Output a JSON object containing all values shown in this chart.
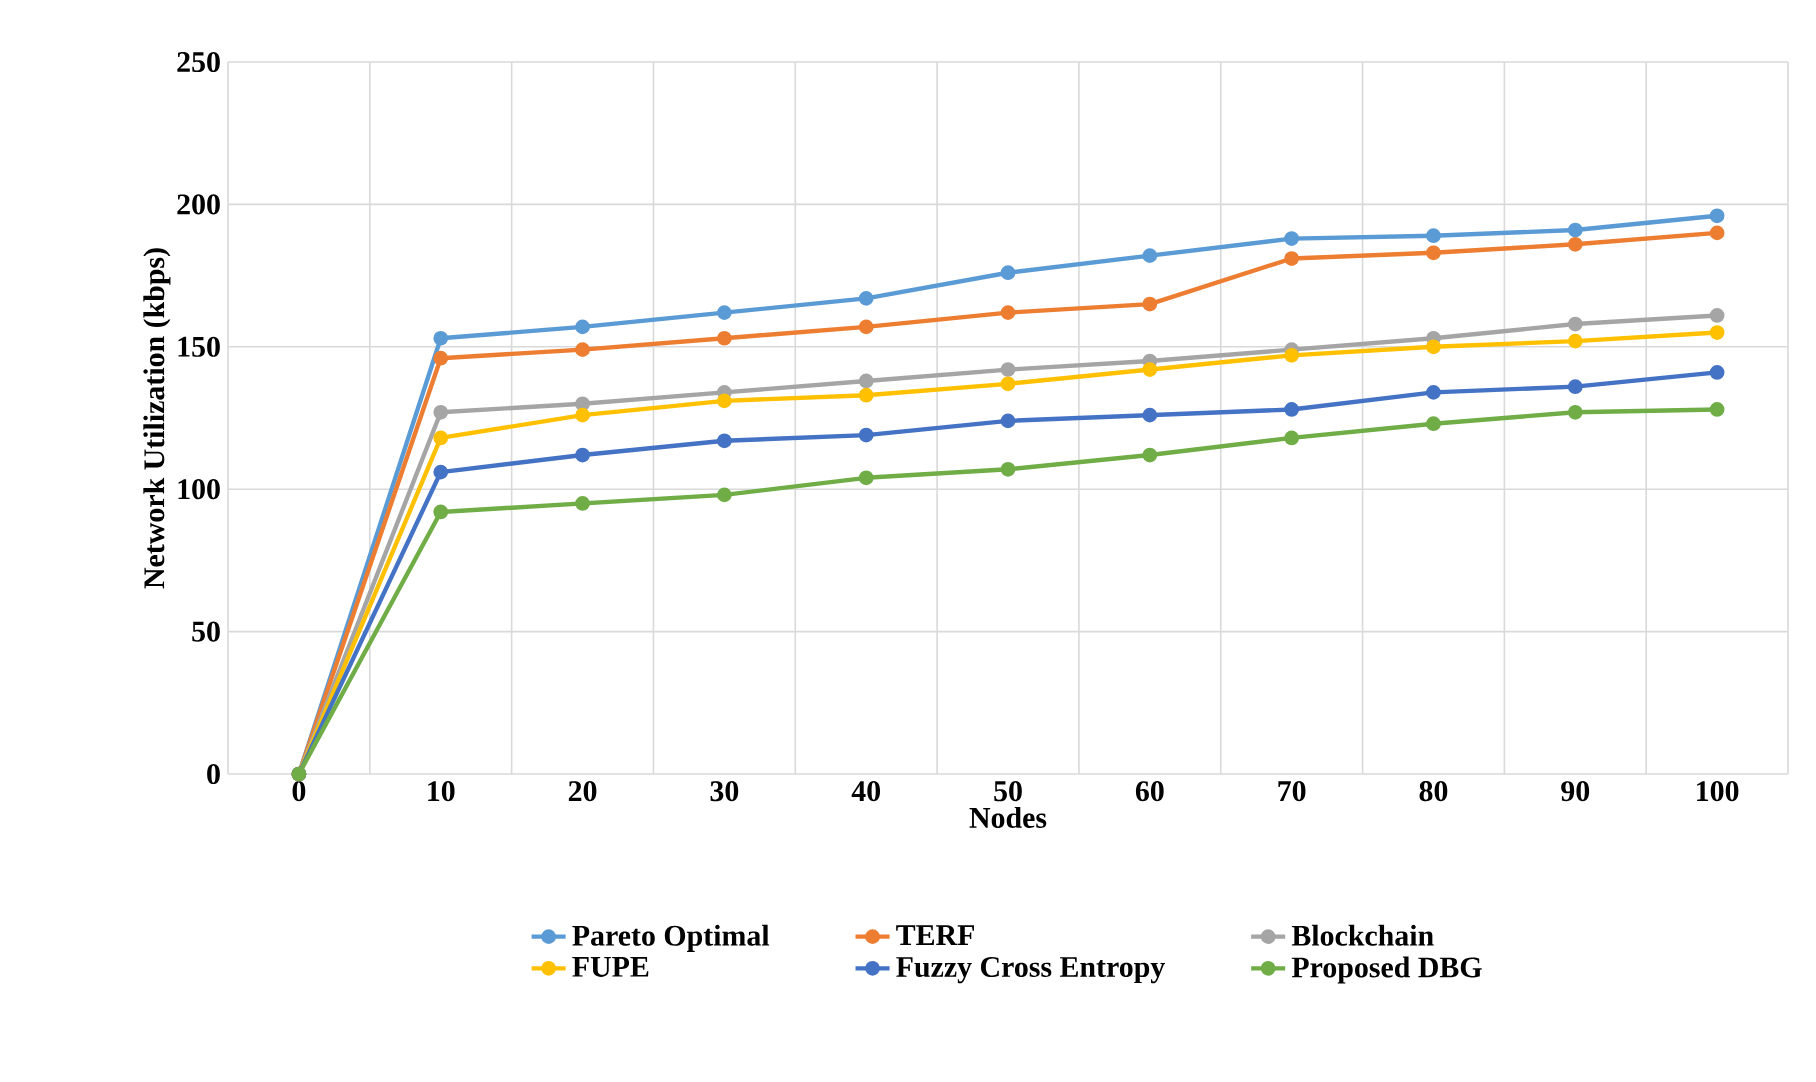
{
  "chart_data": {
    "type": "line",
    "xlabel": "Nodes",
    "ylabel": "Network Utilization  (kbps)",
    "categories": [
      "0",
      "10",
      "20",
      "30",
      "40",
      "50",
      "60",
      "70",
      "80",
      "90",
      "100"
    ],
    "ylim": [
      0,
      250
    ],
    "yticks": [
      0,
      50,
      100,
      150,
      200,
      250
    ],
    "grid": true,
    "legend": "bottom",
    "marker": "circle",
    "line_style": "solid",
    "series": [
      {
        "name": "Pareto Optimal",
        "color": "#5b9bd5",
        "values": [
          0,
          153,
          157,
          162,
          167,
          176,
          182,
          188,
          189,
          191,
          196
        ]
      },
      {
        "name": "TERF",
        "color": "#ed7d31",
        "values": [
          0,
          146,
          149,
          153,
          157,
          162,
          165,
          181,
          183,
          186,
          190
        ]
      },
      {
        "name": "Blockchain",
        "color": "#a5a5a5",
        "values": [
          0,
          127,
          130,
          134,
          138,
          142,
          145,
          149,
          153,
          158,
          161
        ]
      },
      {
        "name": "FUPE",
        "color": "#ffc000",
        "values": [
          0,
          118,
          126,
          131,
          133,
          137,
          142,
          147,
          150,
          152,
          155
        ]
      },
      {
        "name": "Fuzzy Cross Entropy",
        "color": "#4472c4",
        "values": [
          0,
          106,
          112,
          117,
          119,
          124,
          126,
          128,
          134,
          136,
          141
        ]
      },
      {
        "name": "Proposed DBG",
        "color": "#70ad47",
        "values": [
          0,
          92,
          95,
          98,
          104,
          107,
          112,
          118,
          123,
          127,
          128
        ]
      }
    ]
  }
}
